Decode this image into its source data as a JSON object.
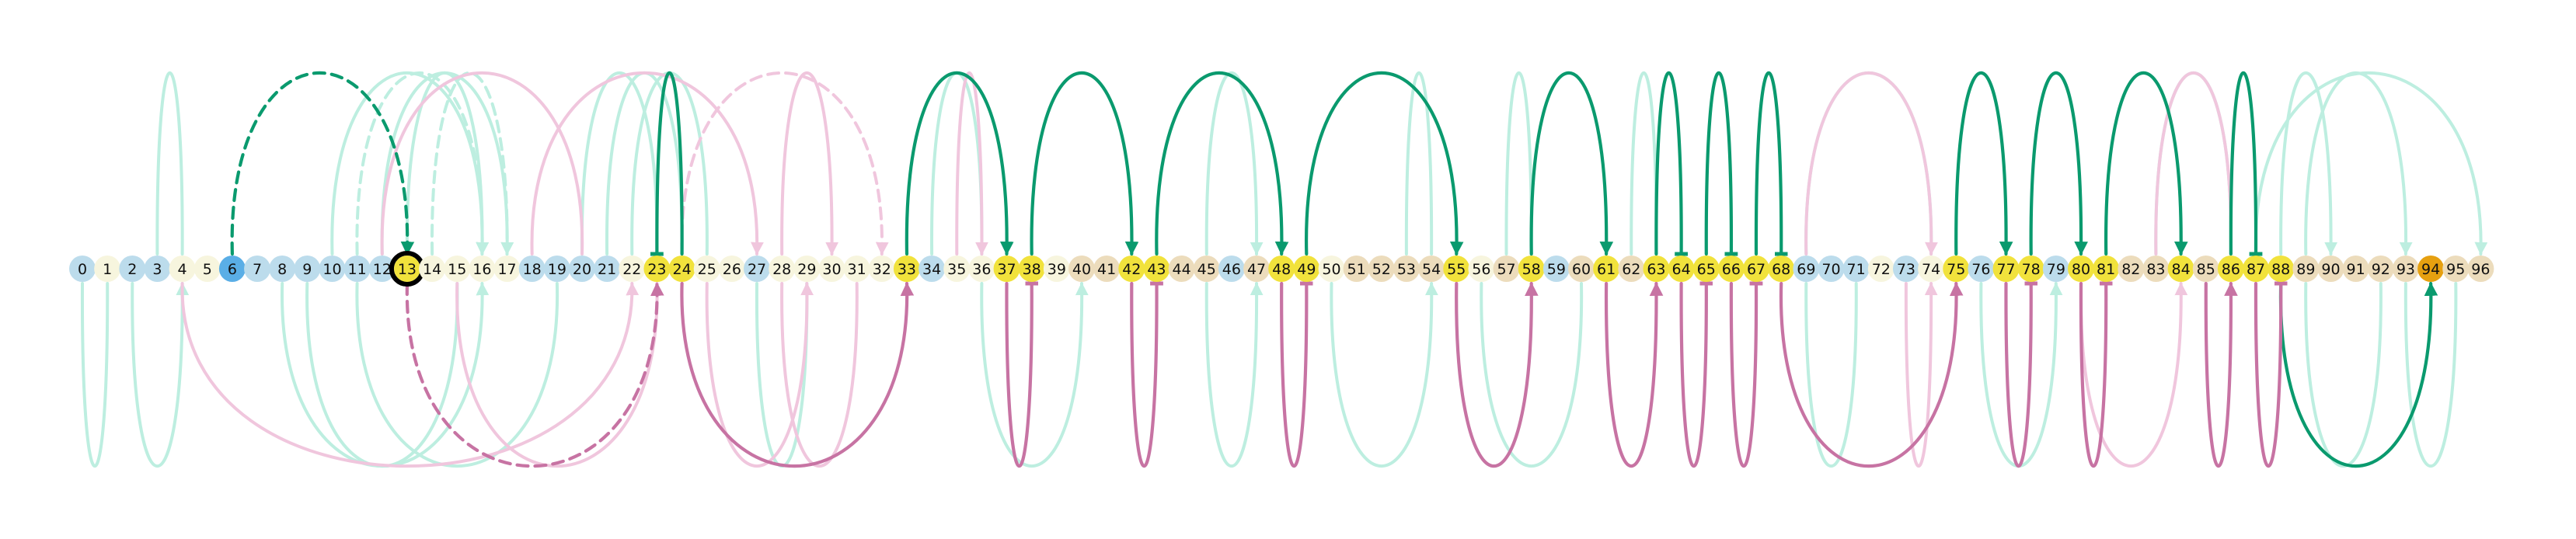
{
  "colors": {
    "background": "#ffffff",
    "node_default": "#f3efd6",
    "node_blue": "#bcdcec",
    "node_light": "#f7f5de",
    "node_yellow": "#f1e23c",
    "node_tan": "#ecdcbc",
    "node_deep_blue": "#5aaee6",
    "node_orange": "#e6a010",
    "focus_ring": "#000000",
    "arc_green_strong": "#0a9a6e",
    "arc_green_faint": "#bdeee0",
    "arc_pink_strong": "#c773a3",
    "arc_pink_faint": "#f0c6dd"
  },
  "nodes": [
    {
      "label": "0",
      "style": "blue"
    },
    {
      "label": "1",
      "style": "light"
    },
    {
      "label": "2",
      "style": "blue"
    },
    {
      "label": "3",
      "style": "blue"
    },
    {
      "label": "4",
      "style": "light"
    },
    {
      "label": "5",
      "style": "light"
    },
    {
      "label": "6",
      "style": "deep_blue"
    },
    {
      "label": "7",
      "style": "blue"
    },
    {
      "label": "8",
      "style": "blue"
    },
    {
      "label": "9",
      "style": "blue"
    },
    {
      "label": "10",
      "style": "blue"
    },
    {
      "label": "11",
      "style": "blue"
    },
    {
      "label": "12",
      "style": "blue"
    },
    {
      "label": "13",
      "style": "yellow",
      "focus": true
    },
    {
      "label": "14",
      "style": "light"
    },
    {
      "label": "15",
      "style": "light"
    },
    {
      "label": "16",
      "style": "light"
    },
    {
      "label": "17",
      "style": "light"
    },
    {
      "label": "18",
      "style": "blue"
    },
    {
      "label": "19",
      "style": "blue"
    },
    {
      "label": "20",
      "style": "blue"
    },
    {
      "label": "21",
      "style": "blue"
    },
    {
      "label": "22",
      "style": "light"
    },
    {
      "label": "23",
      "style": "yellow"
    },
    {
      "label": "24",
      "style": "yellow"
    },
    {
      "label": "25",
      "style": "light"
    },
    {
      "label": "26",
      "style": "light"
    },
    {
      "label": "27",
      "style": "blue"
    },
    {
      "label": "28",
      "style": "light"
    },
    {
      "label": "29",
      "style": "light"
    },
    {
      "label": "30",
      "style": "light"
    },
    {
      "label": "31",
      "style": "light"
    },
    {
      "label": "32",
      "style": "light"
    },
    {
      "label": "33",
      "style": "yellow"
    },
    {
      "label": "34",
      "style": "blue"
    },
    {
      "label": "35",
      "style": "light"
    },
    {
      "label": "36",
      "style": "light"
    },
    {
      "label": "37",
      "style": "yellow"
    },
    {
      "label": "38",
      "style": "yellow"
    },
    {
      "label": "39",
      "style": "light"
    },
    {
      "label": "40",
      "style": "tan"
    },
    {
      "label": "41",
      "style": "tan"
    },
    {
      "label": "42",
      "style": "yellow"
    },
    {
      "label": "43",
      "style": "yellow"
    },
    {
      "label": "44",
      "style": "tan"
    },
    {
      "label": "45",
      "style": "tan"
    },
    {
      "label": "46",
      "style": "blue"
    },
    {
      "label": "47",
      "style": "tan"
    },
    {
      "label": "48",
      "style": "yellow"
    },
    {
      "label": "49",
      "style": "yellow"
    },
    {
      "label": "50",
      "style": "light"
    },
    {
      "label": "51",
      "style": "tan"
    },
    {
      "label": "52",
      "style": "tan"
    },
    {
      "label": "53",
      "style": "tan"
    },
    {
      "label": "54",
      "style": "tan"
    },
    {
      "label": "55",
      "style": "yellow"
    },
    {
      "label": "56",
      "style": "light"
    },
    {
      "label": "57",
      "style": "tan"
    },
    {
      "label": "58",
      "style": "yellow"
    },
    {
      "label": "59",
      "style": "blue"
    },
    {
      "label": "60",
      "style": "tan"
    },
    {
      "label": "61",
      "style": "yellow"
    },
    {
      "label": "62",
      "style": "tan"
    },
    {
      "label": "63",
      "style": "yellow"
    },
    {
      "label": "64",
      "style": "yellow"
    },
    {
      "label": "65",
      "style": "yellow"
    },
    {
      "label": "66",
      "style": "yellow"
    },
    {
      "label": "67",
      "style": "yellow"
    },
    {
      "label": "68",
      "style": "yellow"
    },
    {
      "label": "69",
      "style": "blue"
    },
    {
      "label": "70",
      "style": "blue"
    },
    {
      "label": "71",
      "style": "blue"
    },
    {
      "label": "72",
      "style": "light"
    },
    {
      "label": "73",
      "style": "blue"
    },
    {
      "label": "74",
      "style": "light"
    },
    {
      "label": "75",
      "style": "yellow"
    },
    {
      "label": "76",
      "style": "blue"
    },
    {
      "label": "77",
      "style": "yellow"
    },
    {
      "label": "78",
      "style": "yellow"
    },
    {
      "label": "79",
      "style": "blue"
    },
    {
      "label": "80",
      "style": "yellow"
    },
    {
      "label": "81",
      "style": "yellow"
    },
    {
      "label": "82",
      "style": "tan"
    },
    {
      "label": "83",
      "style": "tan"
    },
    {
      "label": "84",
      "style": "yellow"
    },
    {
      "label": "85",
      "style": "tan"
    },
    {
      "label": "86",
      "style": "yellow"
    },
    {
      "label": "87",
      "style": "yellow"
    },
    {
      "label": "88",
      "style": "yellow"
    },
    {
      "label": "89",
      "style": "tan"
    },
    {
      "label": "90",
      "style": "tan"
    },
    {
      "label": "91",
      "style": "tan"
    },
    {
      "label": "92",
      "style": "tan"
    },
    {
      "label": "93",
      "style": "tan"
    },
    {
      "label": "94",
      "style": "orange"
    },
    {
      "label": "95",
      "style": "tan"
    },
    {
      "label": "96",
      "style": "tan"
    }
  ],
  "arcs": [
    {
      "from": 6,
      "to": 13,
      "side": "above",
      "color": "arc_green_strong",
      "dashed": true,
      "end": "arrow"
    },
    {
      "from": 24,
      "to": 23,
      "side": "above",
      "color": "arc_green_strong",
      "end": "bar"
    },
    {
      "from": 33,
      "to": 37,
      "side": "above",
      "color": "arc_green_strong",
      "end": "arrow"
    },
    {
      "from": 38,
      "to": 42,
      "side": "above",
      "color": "arc_green_strong",
      "end": "arrow"
    },
    {
      "from": 43,
      "to": 48,
      "side": "above",
      "color": "arc_green_strong",
      "end": "arrow"
    },
    {
      "from": 49,
      "to": 55,
      "side": "above",
      "color": "arc_green_strong",
      "end": "arrow"
    },
    {
      "from": 58,
      "to": 61,
      "side": "above",
      "color": "arc_green_strong",
      "end": "arrow"
    },
    {
      "from": 63,
      "to": 64,
      "side": "above",
      "color": "arc_green_strong",
      "end": "bar"
    },
    {
      "from": 65,
      "to": 66,
      "side": "above",
      "color": "arc_green_strong",
      "end": "bar"
    },
    {
      "from": 67,
      "to": 68,
      "side": "above",
      "color": "arc_green_strong",
      "end": "bar"
    },
    {
      "from": 75,
      "to": 77,
      "side": "above",
      "color": "arc_green_strong",
      "end": "arrow"
    },
    {
      "from": 78,
      "to": 80,
      "side": "above",
      "color": "arc_green_strong",
      "end": "arrow"
    },
    {
      "from": 81,
      "to": 84,
      "side": "above",
      "color": "arc_green_strong",
      "end": "arrow"
    },
    {
      "from": 86,
      "to": 87,
      "side": "above",
      "color": "arc_green_strong",
      "end": "bar"
    },
    {
      "from": 88,
      "to": 94,
      "side": "below",
      "color": "arc_green_strong",
      "end": "arrow"
    },
    {
      "from": 13,
      "to": 23,
      "side": "below",
      "color": "arc_pink_strong",
      "dashed": true,
      "end": "arrow"
    },
    {
      "from": 24,
      "to": 33,
      "side": "below",
      "color": "arc_pink_strong",
      "end": "arrow"
    },
    {
      "from": 37,
      "to": 38,
      "side": "below",
      "color": "arc_pink_strong",
      "end": "bar"
    },
    {
      "from": 42,
      "to": 43,
      "side": "below",
      "color": "arc_pink_strong",
      "end": "bar"
    },
    {
      "from": 48,
      "to": 49,
      "side": "below",
      "color": "arc_pink_strong",
      "end": "bar"
    },
    {
      "from": 55,
      "to": 58,
      "side": "below",
      "color": "arc_pink_strong",
      "end": "arrow"
    },
    {
      "from": 61,
      "to": 63,
      "side": "below",
      "color": "arc_pink_strong",
      "end": "arrow"
    },
    {
      "from": 64,
      "to": 65,
      "side": "below",
      "color": "arc_pink_strong",
      "end": "bar"
    },
    {
      "from": 66,
      "to": 67,
      "side": "below",
      "color": "arc_pink_strong",
      "end": "bar"
    },
    {
      "from": 68,
      "to": 75,
      "side": "below",
      "color": "arc_pink_strong",
      "end": "arrow"
    },
    {
      "from": 77,
      "to": 78,
      "side": "below",
      "color": "arc_pink_strong",
      "end": "bar"
    },
    {
      "from": 80,
      "to": 81,
      "side": "below",
      "color": "arc_pink_strong",
      "end": "bar"
    },
    {
      "from": 85,
      "to": 86,
      "side": "below",
      "color": "arc_pink_strong",
      "end": "arrow"
    },
    {
      "from": 87,
      "to": 88,
      "side": "below",
      "color": "arc_pink_strong",
      "end": "bar"
    },
    {
      "from": 3,
      "to": 4,
      "side": "above",
      "color": "arc_green_faint",
      "end": "none"
    },
    {
      "from": 13,
      "to": 16,
      "side": "above",
      "color": "arc_green_faint",
      "end": "arrow"
    },
    {
      "from": 10,
      "to": 16,
      "side": "above",
      "color": "arc_green_faint",
      "end": "arrow"
    },
    {
      "from": 12,
      "to": 17,
      "side": "above",
      "color": "arc_green_faint",
      "end": "arrow"
    },
    {
      "from": 14,
      "to": 17,
      "side": "above",
      "color": "arc_green_faint",
      "dashed": true,
      "end": "arrow"
    },
    {
      "from": 11,
      "to": 16,
      "side": "above",
      "color": "arc_green_faint",
      "dashed": true,
      "end": "arrow"
    },
    {
      "from": 20,
      "to": 23,
      "side": "above",
      "color": "arc_green_faint",
      "end": "none"
    },
    {
      "from": 21,
      "to": 24,
      "side": "above",
      "color": "arc_green_faint",
      "end": "none"
    },
    {
      "from": 22,
      "to": 25,
      "side": "above",
      "color": "arc_green_faint",
      "end": "none"
    },
    {
      "from": 34,
      "to": 36,
      "side": "above",
      "color": "arc_green_faint",
      "end": "none"
    },
    {
      "from": 45,
      "to": 47,
      "side": "above",
      "color": "arc_green_faint",
      "end": "arrow"
    },
    {
      "from": 53,
      "to": 54,
      "side": "above",
      "color": "arc_green_faint",
      "end": "none"
    },
    {
      "from": 57,
      "to": 58,
      "side": "above",
      "color": "arc_green_faint",
      "end": "none"
    },
    {
      "from": 62,
      "to": 63,
      "side": "above",
      "color": "arc_green_faint",
      "end": "none"
    },
    {
      "from": 69,
      "to": 74,
      "side": "above",
      "color": "arc_green_faint",
      "end": "none"
    },
    {
      "from": 83,
      "to": 86,
      "side": "above",
      "color": "arc_green_faint",
      "end": "none"
    },
    {
      "from": 88,
      "to": 90,
      "side": "above",
      "color": "arc_green_faint",
      "end": "arrow"
    },
    {
      "from": 89,
      "to": 93,
      "side": "above",
      "color": "arc_green_faint",
      "end": "arrow"
    },
    {
      "from": 87,
      "to": 96,
      "side": "above",
      "color": "arc_green_faint",
      "end": "arrow"
    },
    {
      "from": 0,
      "to": 1,
      "side": "below",
      "color": "arc_green_faint",
      "end": "none"
    },
    {
      "from": 2,
      "to": 4,
      "side": "below",
      "color": "arc_green_faint",
      "end": "arrow"
    },
    {
      "from": 8,
      "to": 16,
      "side": "below",
      "color": "arc_green_faint",
      "end": "arrow"
    },
    {
      "from": 9,
      "to": 15,
      "side": "below",
      "color": "arc_green_faint",
      "end": "none"
    },
    {
      "from": 11,
      "to": 19,
      "side": "below",
      "color": "arc_green_faint",
      "end": "none"
    },
    {
      "from": 27,
      "to": 29,
      "side": "below",
      "color": "arc_green_faint",
      "end": "none"
    },
    {
      "from": 36,
      "to": 40,
      "side": "below",
      "color": "arc_green_faint",
      "end": "arrow"
    },
    {
      "from": 45,
      "to": 47,
      "side": "below",
      "color": "arc_green_faint",
      "end": "arrow"
    },
    {
      "from": 50,
      "to": 54,
      "side": "below",
      "color": "arc_green_faint",
      "end": "arrow"
    },
    {
      "from": 56,
      "to": 60,
      "side": "below",
      "color": "arc_green_faint",
      "end": "none"
    },
    {
      "from": 69,
      "to": 71,
      "side": "below",
      "color": "arc_green_faint",
      "end": "none"
    },
    {
      "from": 76,
      "to": 79,
      "side": "below",
      "color": "arc_green_faint",
      "end": "arrow"
    },
    {
      "from": 89,
      "to": 92,
      "side": "below",
      "color": "arc_green_faint",
      "end": "none"
    },
    {
      "from": 93,
      "to": 95,
      "side": "below",
      "color": "arc_green_faint",
      "end": "none"
    },
    {
      "from": 12,
      "to": 20,
      "side": "above",
      "color": "arc_pink_faint",
      "end": "none"
    },
    {
      "from": 18,
      "to": 27,
      "side": "above",
      "color": "arc_pink_faint",
      "end": "arrow"
    },
    {
      "from": 24,
      "to": 32,
      "side": "above",
      "color": "arc_pink_faint",
      "dashed": true,
      "end": "arrow"
    },
    {
      "from": 28,
      "to": 30,
      "side": "above",
      "color": "arc_pink_faint",
      "end": "arrow"
    },
    {
      "from": 35,
      "to": 36,
      "side": "above",
      "color": "arc_pink_faint",
      "end": "arrow"
    },
    {
      "from": 69,
      "to": 74,
      "side": "above",
      "color": "arc_pink_faint",
      "end": "arrow"
    },
    {
      "from": 83,
      "to": 86,
      "side": "above",
      "color": "arc_pink_faint",
      "end": "none"
    },
    {
      "from": 4,
      "to": 22,
      "side": "below",
      "color": "arc_pink_faint",
      "end": "arrow"
    },
    {
      "from": 15,
      "to": 23,
      "side": "below",
      "color": "arc_pink_faint",
      "end": "arrow"
    },
    {
      "from": 25,
      "to": 29,
      "side": "below",
      "color": "arc_pink_faint",
      "end": "arrow"
    },
    {
      "from": 28,
      "to": 31,
      "side": "below",
      "color": "arc_pink_faint",
      "end": "none"
    },
    {
      "from": 73,
      "to": 74,
      "side": "below",
      "color": "arc_pink_faint",
      "end": "arrow"
    },
    {
      "from": 80,
      "to": 84,
      "side": "below",
      "color": "arc_pink_faint",
      "end": "arrow"
    }
  ]
}
